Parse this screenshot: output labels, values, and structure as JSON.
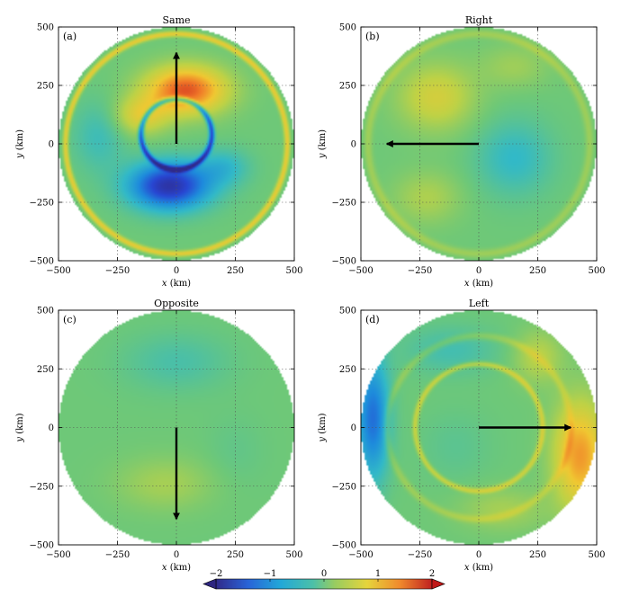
{
  "figure": {
    "colorbar_ticks": [
      "−2",
      "−1",
      "0",
      "1",
      "2"
    ],
    "colorbar_range": [
      -2,
      2
    ]
  },
  "chart_data": [
    {
      "type": "heatmap",
      "panel_label": "(a)",
      "title": "Same",
      "xlabel_var": "x",
      "xlabel_unit": "(km)",
      "ylabel_var": "y",
      "ylabel_unit": "(km)",
      "xlim": [
        -500,
        500
      ],
      "ylim": [
        -500,
        500
      ],
      "xticks": [
        -500,
        -250,
        0,
        250,
        500
      ],
      "yticks": [
        500,
        250,
        0,
        -250,
        -500
      ],
      "xtick_labels": [
        "−500",
        "−250",
        "0",
        "250",
        "500"
      ],
      "ytick_labels": [
        "500",
        "250",
        "0",
        "−250",
        "−500"
      ],
      "domain_radius_km": 500,
      "arrow": {
        "from": [
          0,
          0
        ],
        "to": [
          0,
          390
        ]
      },
      "field_features": [
        {
          "kind": "blob",
          "x": 40,
          "y": 230,
          "sigma_x": 170,
          "sigma_y": 100,
          "value": 1.7
        },
        {
          "kind": "blob",
          "x": -150,
          "y": 120,
          "sigma_x": 110,
          "sigma_y": 80,
          "value": 0.8
        },
        {
          "kind": "blob",
          "x": -30,
          "y": -180,
          "sigma_x": 170,
          "sigma_y": 100,
          "value": -1.8
        },
        {
          "kind": "blob",
          "x": 200,
          "y": -100,
          "sigma_x": 110,
          "sigma_y": 80,
          "value": -0.5
        },
        {
          "kind": "blob",
          "x": -330,
          "y": 30,
          "sigma_x": 110,
          "sigma_y": 150,
          "value": -0.4
        },
        {
          "kind": "ring",
          "x": 0,
          "y": 0,
          "radius": 470,
          "width": 12,
          "value": 0.9
        },
        {
          "kind": "ring",
          "x": 0,
          "y": 40,
          "radius": 150,
          "width": 12,
          "value": -1.5
        }
      ]
    },
    {
      "type": "heatmap",
      "panel_label": "(b)",
      "title": "Right",
      "xlabel_var": "x",
      "xlabel_unit": "(km)",
      "ylabel_var": "y",
      "ylabel_unit": "(km)",
      "xlim": [
        -500,
        500
      ],
      "ylim": [
        -500,
        500
      ],
      "xticks": [
        -500,
        -250,
        0,
        250,
        500
      ],
      "yticks": [
        500,
        250,
        0,
        -250,
        -500
      ],
      "xtick_labels": [
        "−500",
        "−250",
        "0",
        "250",
        "500"
      ],
      "ytick_labels": [
        "500",
        "250",
        "0",
        "−250",
        "−500"
      ],
      "domain_radius_km": 500,
      "arrow": {
        "from": [
          0,
          0
        ],
        "to": [
          -390,
          0
        ]
      },
      "field_features": [
        {
          "kind": "blob",
          "x": -180,
          "y": 200,
          "sigma_x": 160,
          "sigma_y": 140,
          "value": 0.7
        },
        {
          "kind": "blob",
          "x": 150,
          "y": -60,
          "sigma_x": 160,
          "sigma_y": 160,
          "value": -0.5
        },
        {
          "kind": "blob",
          "x": -220,
          "y": -230,
          "sigma_x": 140,
          "sigma_y": 110,
          "value": 0.4
        },
        {
          "kind": "blob",
          "x": 150,
          "y": 330,
          "sigma_x": 140,
          "sigma_y": 90,
          "value": 0.3
        },
        {
          "kind": "ring",
          "x": 0,
          "y": 0,
          "radius": 470,
          "width": 18,
          "value": 0.3
        }
      ]
    },
    {
      "type": "heatmap",
      "panel_label": "(c)",
      "title": "Opposite",
      "xlabel_var": "x",
      "xlabel_unit": "(km)",
      "ylabel_var": "y",
      "ylabel_unit": "(km)",
      "xlim": [
        -500,
        500
      ],
      "ylim": [
        -500,
        500
      ],
      "xticks": [
        -500,
        -250,
        0,
        250,
        500
      ],
      "yticks": [
        500,
        250,
        0,
        -250,
        -500
      ],
      "xtick_labels": [
        "−500",
        "−250",
        "0",
        "250",
        "500"
      ],
      "ytick_labels": [
        "500",
        "250",
        "0",
        "−250",
        "−500"
      ],
      "domain_radius_km": 500,
      "arrow": {
        "from": [
          0,
          0
        ],
        "to": [
          0,
          -390
        ]
      },
      "field_features": [
        {
          "kind": "blob",
          "x": 0,
          "y": 280,
          "sigma_x": 220,
          "sigma_y": 120,
          "value": -0.3
        },
        {
          "kind": "blob",
          "x": -50,
          "y": -240,
          "sigma_x": 200,
          "sigma_y": 110,
          "value": 0.35
        },
        {
          "kind": "blob",
          "x": 250,
          "y": -100,
          "sigma_x": 120,
          "sigma_y": 150,
          "value": -0.1
        }
      ]
    },
    {
      "type": "heatmap",
      "panel_label": "(d)",
      "title": "Left",
      "xlabel_var": "x",
      "xlabel_unit": "(km)",
      "ylabel_var": "y",
      "ylabel_unit": "(km)",
      "xlim": [
        -500,
        500
      ],
      "ylim": [
        -500,
        500
      ],
      "xticks": [
        -500,
        -250,
        0,
        250,
        500
      ],
      "yticks": [
        500,
        250,
        0,
        -250,
        -500
      ],
      "xtick_labels": [
        "−500",
        "−250",
        "0",
        "250",
        "500"
      ],
      "ytick_labels": [
        "500",
        "250",
        "0",
        "−250",
        "−500"
      ],
      "domain_radius_km": 500,
      "arrow": {
        "from": [
          0,
          0
        ],
        "to": [
          390,
          0
        ]
      },
      "field_features": [
        {
          "kind": "blob",
          "x": 430,
          "y": -120,
          "sigma_x": 110,
          "sigma_y": 230,
          "value": 1.3
        },
        {
          "kind": "blob",
          "x": -450,
          "y": 40,
          "sigma_x": 70,
          "sigma_y": 260,
          "value": -1.2
        },
        {
          "kind": "blob",
          "x": -120,
          "y": 330,
          "sigma_x": 200,
          "sigma_y": 100,
          "value": -0.35
        },
        {
          "kind": "blob",
          "x": 250,
          "y": 300,
          "sigma_x": 100,
          "sigma_y": 110,
          "value": 0.5
        },
        {
          "kind": "blob",
          "x": 100,
          "y": -350,
          "sigma_x": 180,
          "sigma_y": 90,
          "value": 0.35
        },
        {
          "kind": "blob",
          "x": -100,
          "y": -80,
          "sigma_x": 150,
          "sigma_y": 150,
          "value": -0.15
        },
        {
          "kind": "ring",
          "x": 0,
          "y": 0,
          "radius": 270,
          "width": 12,
          "value": 0.6
        },
        {
          "kind": "ring",
          "x": 0,
          "y": 0,
          "radius": 390,
          "width": 16,
          "value": 0.3
        }
      ]
    }
  ]
}
